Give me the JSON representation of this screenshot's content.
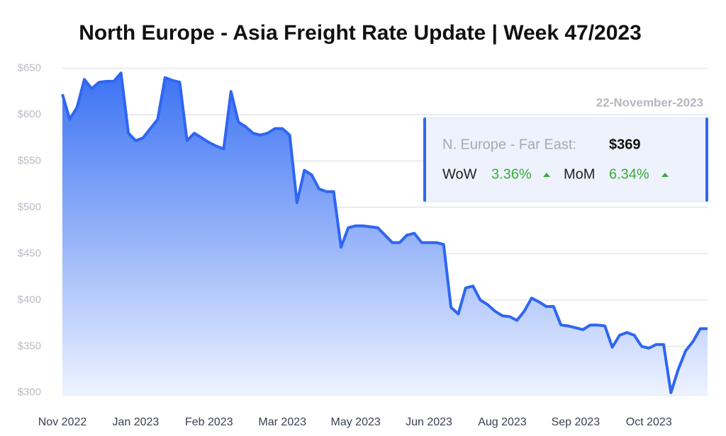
{
  "chart_data": {
    "type": "line",
    "title": "North Europe - Asia Freight Rate Update | Week 47/2023",
    "categories": [
      "Nov 2022",
      null,
      null,
      null,
      null,
      null,
      null,
      null,
      null,
      null,
      "Jan 2023",
      null,
      null,
      null,
      null,
      null,
      null,
      null,
      null,
      null,
      "Feb 2023",
      null,
      null,
      null,
      null,
      null,
      null,
      null,
      null,
      null,
      "Mar 2023",
      null,
      null,
      null,
      null,
      null,
      null,
      null,
      null,
      null,
      "May 2023",
      null,
      null,
      null,
      null,
      null,
      null,
      null,
      null,
      null,
      "Jun 2023",
      null,
      null,
      null,
      null,
      null,
      null,
      null,
      null,
      null,
      "Aug 2023",
      null,
      null,
      null,
      null,
      null,
      null,
      null,
      null,
      null,
      "Sep 2023",
      null,
      null,
      null,
      null,
      null,
      null,
      null,
      null,
      null,
      "Oct 2023",
      null,
      null,
      null,
      null,
      null,
      null,
      null,
      null
    ],
    "values": [
      622,
      595,
      608,
      638,
      628,
      635,
      636,
      636,
      645,
      580,
      572,
      575,
      585,
      595,
      640,
      637,
      635,
      572,
      580,
      575,
      570,
      566,
      563,
      625,
      592,
      587,
      580,
      578,
      580,
      585,
      585,
      578,
      505,
      540,
      535,
      520,
      517,
      517,
      457,
      478,
      480,
      480,
      479,
      478,
      470,
      462,
      462,
      470,
      472,
      462,
      462,
      462,
      460,
      392,
      385,
      413,
      415,
      400,
      395,
      388,
      383,
      382,
      378,
      388,
      402,
      398,
      393,
      393,
      373,
      372,
      370,
      368,
      373,
      373,
      372,
      349,
      362,
      365,
      362,
      350,
      348,
      352,
      352,
      300,
      325,
      345,
      355,
      369,
      369
    ],
    "color": "#2f66f2",
    "ylim": [
      296,
      655
    ],
    "yticks": [
      {
        "value": 300,
        "label": "$300"
      },
      {
        "value": 350,
        "label": "$350"
      },
      {
        "value": 400,
        "label": "$400"
      },
      {
        "value": 450,
        "label": "$450"
      },
      {
        "value": 500,
        "label": "$500"
      },
      {
        "value": 550,
        "label": "$550"
      },
      {
        "value": 600,
        "label": "$600"
      },
      {
        "value": 650,
        "label": "$650"
      }
    ],
    "grid": true,
    "info": {
      "date": "22-November-2023",
      "route": "N. Europe - Far East:",
      "rate": "$369",
      "wow_label": "WoW",
      "wow": "3.36%",
      "mom_label": "MoM",
      "mom": "6.34%"
    }
  }
}
